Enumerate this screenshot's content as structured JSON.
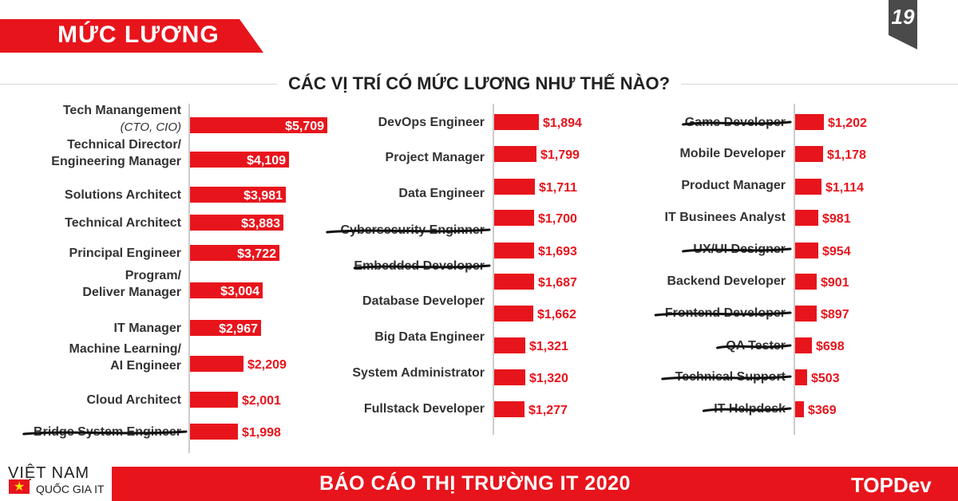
{
  "header": {
    "title": "MỨC LƯƠNG",
    "page_number": "19"
  },
  "chart_data": {
    "type": "bar",
    "title": "CÁC VỊ TRÍ CÓ MỨC LƯƠNG NHƯ THẾ NÀO?",
    "panels": [
      {
        "name": "left",
        "max": 5709,
        "items": [
          {
            "label": [
              "Tech Manangement",
              "(CTO, CIO)"
            ],
            "value": 5709,
            "display": "$5,709",
            "struck": false
          },
          {
            "label": [
              "Technical Director/",
              "Engineering Manager"
            ],
            "value": 4109,
            "display": "$4,109",
            "struck": false
          },
          {
            "label": [
              "Solutions Architect"
            ],
            "value": 3981,
            "display": "$3,981",
            "struck": false
          },
          {
            "label": [
              "Technical Architect"
            ],
            "value": 3883,
            "display": "$3,883",
            "struck": false
          },
          {
            "label": [
              "Principal Engineer"
            ],
            "value": 3722,
            "display": "$3,722",
            "struck": false
          },
          {
            "label": [
              "Program/",
              "Deliver Manager"
            ],
            "value": 3004,
            "display": "$3,004",
            "struck": false
          },
          {
            "label": [
              "IT Manager"
            ],
            "value": 2967,
            "display": "$2,967",
            "struck": false
          },
          {
            "label": [
              "Machine Learning/",
              "AI Engineer"
            ],
            "value": 2209,
            "display": "$2,209",
            "struck": false
          },
          {
            "label": [
              "Cloud Architect"
            ],
            "value": 2001,
            "display": "$2,001",
            "struck": false
          },
          {
            "label": [
              "Bridge System Engineer"
            ],
            "value": 1998,
            "display": "$1,998",
            "struck": true
          }
        ]
      },
      {
        "name": "middle",
        "max": 1894,
        "items": [
          {
            "label": [
              "DevOps Engineer"
            ],
            "value": 1894,
            "display": "$1,894",
            "struck": false
          },
          {
            "label": [
              "Project Manager"
            ],
            "value": 1799,
            "display": "$1,799",
            "struck": false
          },
          {
            "label": [
              "Data Engineer"
            ],
            "value": 1711,
            "display": "$1,711",
            "struck": false
          },
          {
            "label": [
              "Cybersecurity Enginner"
            ],
            "value": 1700,
            "display": "$1,700",
            "struck": true
          },
          {
            "label": [
              "Embedded Developer"
            ],
            "value": 1693,
            "display": "$1,693",
            "struck": true
          },
          {
            "label": [
              ""
            ],
            "value": 1687,
            "display": "$1,687",
            "struck": false
          },
          {
            "label": [
              "Database Developer"
            ],
            "value": 1662,
            "display": "$1,662",
            "struck": false
          },
          {
            "label": [
              "Big Data Engineer"
            ],
            "value": 1321,
            "display": "$1,321",
            "struck": false
          },
          {
            "label": [
              "System Administrator"
            ],
            "value": 1320,
            "display": "$1,320",
            "struck": false
          },
          {
            "label": [
              "Fullstack Developer"
            ],
            "value": 1277,
            "display": "$1,277",
            "struck": false
          }
        ]
      },
      {
        "name": "right",
        "max": 1202,
        "items": [
          {
            "label": [
              "Game Developer"
            ],
            "value": 1202,
            "display": "$1,202",
            "struck": true
          },
          {
            "label": [
              "Mobile Developer"
            ],
            "value": 1178,
            "display": "$1,178",
            "struck": false
          },
          {
            "label": [
              "Product Manager"
            ],
            "value": 1114,
            "display": "$1,114",
            "struck": false
          },
          {
            "label": [
              "IT Businees Analyst"
            ],
            "value": 981,
            "display": "$981",
            "struck": false
          },
          {
            "label": [
              "UX/UI Designer"
            ],
            "value": 954,
            "display": "$954",
            "struck": true
          },
          {
            "label": [
              "Backend Developer"
            ],
            "value": 901,
            "display": "$901",
            "struck": false
          },
          {
            "label": [
              "Frontend Developer"
            ],
            "value": 897,
            "display": "$897",
            "struck": true
          },
          {
            "label": [
              "QA Tester"
            ],
            "value": 698,
            "display": "$698",
            "struck": true
          },
          {
            "label": [
              "Technical Support"
            ],
            "value": 503,
            "display": "$503",
            "struck": true
          },
          {
            "label": [
              "IT Helpdesk"
            ],
            "value": 369,
            "display": "$369",
            "struck": true
          }
        ]
      }
    ]
  },
  "footer": {
    "title": "BÁO CÁO THỊ TRƯỜNG IT 2020",
    "logo_line1": "VIỆT NAM",
    "logo_line2": "QUỐC GIA IT",
    "brand": "TOPDev"
  },
  "colors": {
    "accent": "#e8141c",
    "dark": "#4a4a4a"
  }
}
